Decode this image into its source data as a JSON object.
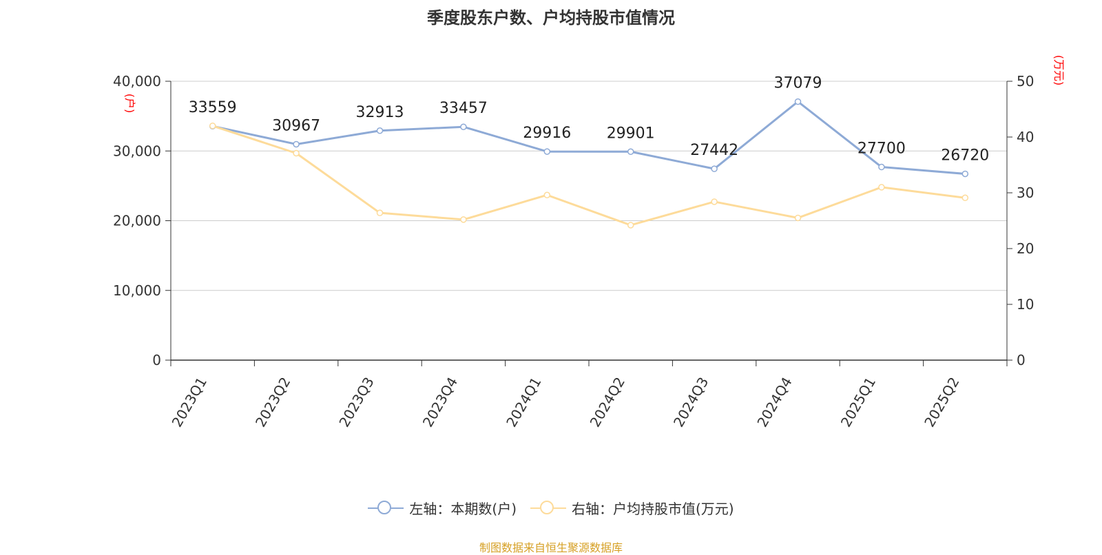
{
  "chart_data": {
    "type": "line",
    "title": "季度股东户数、户均持股市值情况",
    "categories": [
      "2023Q1",
      "2023Q2",
      "2023Q3",
      "2023Q4",
      "2024Q1",
      "2024Q2",
      "2024Q3",
      "2024Q4",
      "2025Q1",
      "2025Q2"
    ],
    "left_axis": {
      "unit": "(户)",
      "min": 0,
      "max": 40000,
      "ticks": [
        "0",
        "10,000",
        "20,000",
        "30,000",
        "40,000"
      ]
    },
    "right_axis": {
      "unit": "(万元)",
      "min": 0,
      "max": 50,
      "ticks": [
        "0",
        "10",
        "20",
        "30",
        "40",
        "50"
      ]
    },
    "series": [
      {
        "name": "左轴：本期数(户)",
        "axis": "left",
        "color": "#8eaad6",
        "values": [
          33559,
          30967,
          32913,
          33457,
          29916,
          29901,
          27442,
          37079,
          27700,
          26720
        ],
        "show_labels": true
      },
      {
        "name": "右轴：户均持股市值(万元)",
        "axis": "right",
        "color": "#fddb9a",
        "values": [
          42.0,
          37.1,
          26.4,
          25.2,
          29.6,
          24.2,
          28.4,
          25.5,
          31.0,
          29.1
        ],
        "show_labels": false
      }
    ],
    "grid": true,
    "legend_position": "bottom",
    "source": "制图数据来自恒生聚源数据库",
    "unit_color": "#ff0000"
  }
}
